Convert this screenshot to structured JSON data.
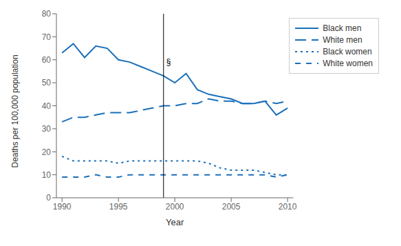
{
  "chart_data": {
    "type": "line",
    "xlabel": "Year",
    "ylabel": "Deaths per 100,000 population",
    "x": [
      1990,
      1991,
      1992,
      1993,
      1994,
      1995,
      1996,
      1997,
      1998,
      1999,
      2000,
      2001,
      2002,
      2003,
      2004,
      2005,
      2006,
      2007,
      2008,
      2009,
      2010
    ],
    "series": [
      {
        "name": "Black men",
        "color": "#1a6fba",
        "line_style": "solid",
        "values": [
          63,
          67,
          61,
          66,
          65,
          60,
          59,
          57,
          55,
          53,
          50,
          54,
          47,
          45,
          44,
          43,
          41,
          41,
          42,
          36,
          39
        ]
      },
      {
        "name": "White men",
        "color": "#1a6fba",
        "line_style": "longdash",
        "values": [
          33,
          35,
          35,
          36,
          37,
          37,
          37,
          38,
          39,
          40,
          40,
          41,
          41,
          43,
          42,
          42,
          41,
          41,
          42,
          41,
          42
        ]
      },
      {
        "name": "Black women",
        "color": "#1a6fba",
        "line_style": "dotted",
        "values": [
          18,
          16,
          16,
          16,
          16,
          15,
          16,
          16,
          16,
          16,
          16,
          16,
          16,
          15,
          13,
          12,
          12,
          12,
          11,
          10,
          10
        ]
      },
      {
        "name": "White women",
        "color": "#1a6fba",
        "line_style": "dashed",
        "values": [
          9,
          9,
          9,
          10,
          9,
          9,
          10,
          10,
          10,
          10,
          10,
          10,
          10,
          10,
          10,
          10,
          10,
          10,
          10,
          9,
          10
        ]
      }
    ],
    "annotations": [
      {
        "type": "vline",
        "x": 1999,
        "y": 59,
        "text": "§"
      }
    ],
    "xlim": [
      1989.5,
      2010.5
    ],
    "ylim": [
      0,
      80
    ],
    "xticks": [
      1990,
      1995,
      2000,
      2005,
      2010
    ],
    "yticks": [
      0,
      10,
      20,
      30,
      40,
      50,
      60,
      70,
      80
    ],
    "grid": false,
    "legend": "upper right"
  }
}
